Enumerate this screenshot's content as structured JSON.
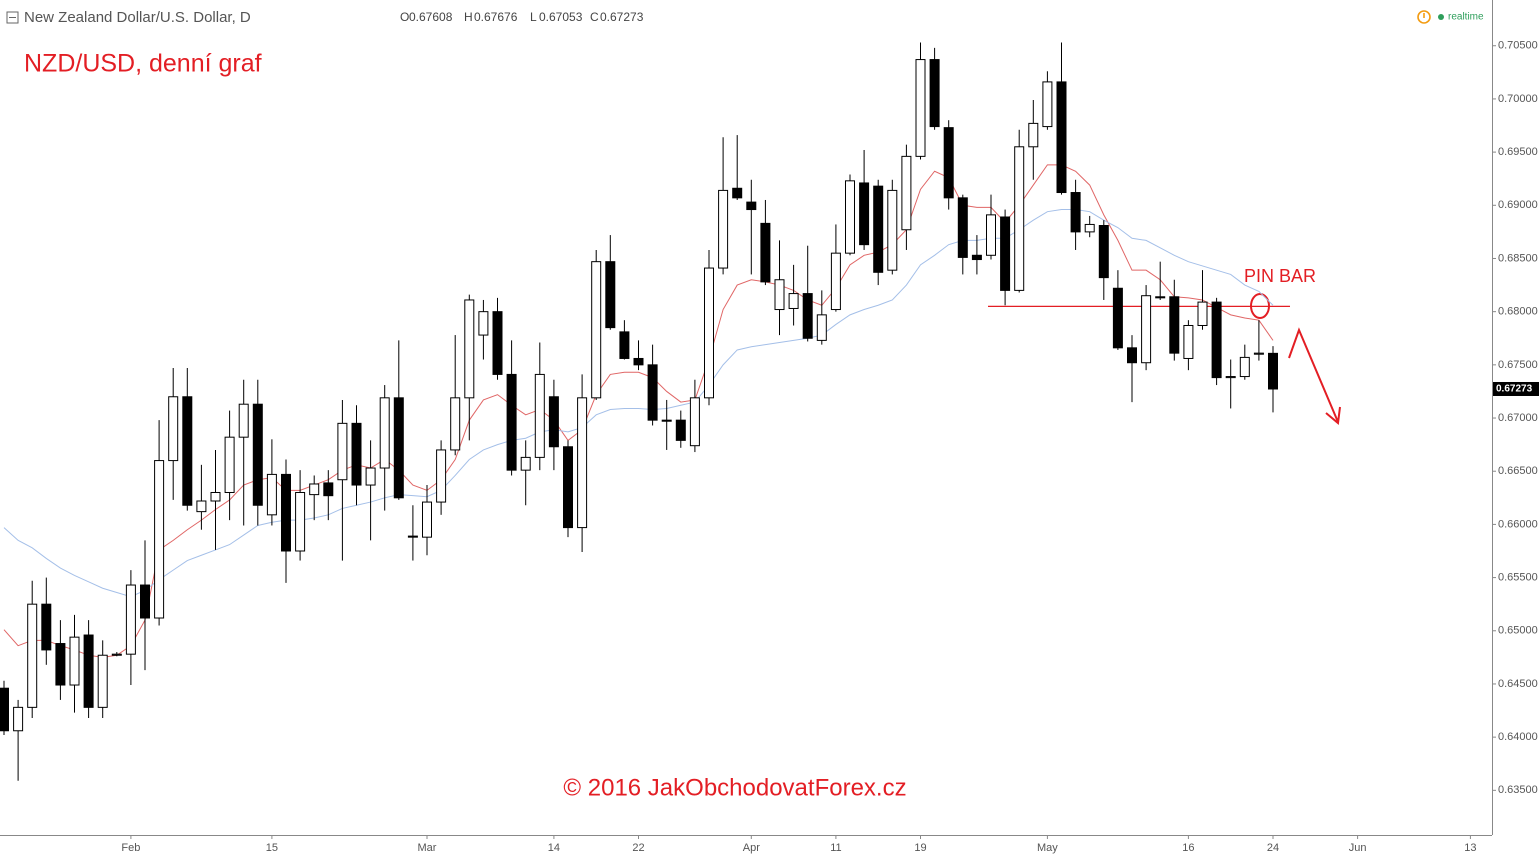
{
  "header": {
    "title": "New Zealand Dollar/U.S. Dollar, D",
    "labels": [
      "O",
      "H",
      "L",
      "C"
    ],
    "status": "realtime"
  },
  "chart_data": {
    "type": "candlestick",
    "title": "NZD/USD, denní graf",
    "footer": "© 2016  JakObchodovatForex.cz",
    "annotation": {
      "text": "PIN BAR",
      "level": 0.6805,
      "color": "#e31e24"
    },
    "up_color": "#ffffff",
    "down_color": "#000000",
    "categories": [
      null,
      null,
      null,
      null,
      null,
      null,
      null,
      null,
      null,
      "Feb",
      null,
      null,
      null,
      null,
      null,
      null,
      null,
      null,
      null,
      "15",
      null,
      null,
      null,
      null,
      null,
      null,
      null,
      null,
      null,
      null,
      "Mar",
      null,
      null,
      null,
      null,
      null,
      null,
      null,
      null,
      "14",
      null,
      null,
      null,
      null,
      null,
      "22",
      null,
      null,
      null,
      null,
      null,
      null,
      null,
      "Apr",
      null,
      null,
      null,
      null,
      null,
      "11",
      null,
      null,
      null,
      null,
      null,
      "19",
      null,
      null,
      null,
      null,
      null,
      null,
      null,
      null,
      "May",
      null,
      null,
      null,
      null,
      null,
      null,
      null,
      null,
      null,
      "16",
      null,
      null,
      null,
      null,
      null,
      "24",
      null,
      null,
      null,
      null,
      null,
      "Jun",
      null,
      null,
      null,
      null,
      null,
      null,
      null,
      "13",
      null
    ],
    "open": [
      0.6446,
      0.6406,
      0.6428,
      0.6525,
      0.6488,
      0.6449,
      0.6496,
      0.6428,
      0.6477,
      0.6478,
      0.6543,
      0.6512,
      0.666,
      0.672,
      0.6612,
      0.6622,
      0.663,
      0.6682,
      0.6713,
      0.6609,
      0.6647,
      0.6575,
      0.6628,
      0.6639,
      0.6642,
      0.6695,
      0.6637,
      0.6653,
      0.6719,
      0.6589,
      0.6588,
      0.6621,
      0.667,
      0.6719,
      0.6778,
      0.68,
      0.6741,
      0.6651,
      0.6663,
      0.672,
      0.6673,
      0.6597,
      0.6719,
      0.6847,
      0.6781,
      0.6756,
      0.675,
      0.6698,
      0.6698,
      0.6674,
      0.6719,
      0.6841,
      0.6916,
      0.6903,
      0.6883,
      0.6802,
      0.6803,
      0.6817,
      0.6773,
      0.6802,
      0.6855,
      0.6921,
      0.6918,
      0.6839,
      0.6877,
      0.6946,
      0.7037,
      0.6973,
      0.6907,
      0.6853,
      0.6853,
      0.6889,
      0.682,
      0.6955,
      0.6974,
      0.7016,
      0.6912,
      0.6875,
      0.6881,
      0.6822,
      0.6766,
      0.6752,
      0.6814,
      0.6814,
      0.6756,
      0.6787,
      0.6809,
      0.6738,
      0.6739,
      0.676,
      0.67608,
      null,
      null,
      null,
      null,
      null,
      null,
      null,
      null,
      null,
      null,
      null,
      null,
      null,
      null,
      null
    ],
    "high": [
      0.6453,
      0.6435,
      0.6547,
      0.655,
      0.651,
      0.6515,
      0.651,
      0.6491,
      0.648,
      0.6557,
      0.6585,
      0.6698,
      0.6747,
      0.6747,
      0.6656,
      0.667,
      0.6707,
      0.6736,
      0.6736,
      0.668,
      0.6661,
      0.6651,
      0.6646,
      0.6651,
      0.6717,
      0.6712,
      0.6679,
      0.6731,
      0.6773,
      0.6618,
      0.6637,
      0.6679,
      0.6778,
      0.6816,
      0.6811,
      0.6813,
      0.6773,
      0.6679,
      0.6771,
      0.6736,
      0.6679,
      0.6741,
      0.6858,
      0.6872,
      0.6792,
      0.6773,
      0.6769,
      0.6717,
      0.6707,
      0.6736,
      0.6858,
      0.6964,
      0.6966,
      0.6924,
      0.6905,
      0.6867,
      0.6844,
      0.6862,
      0.682,
      0.6882,
      0.6929,
      0.6952,
      0.6924,
      0.6924,
      0.6957,
      0.7053,
      0.7048,
      0.698,
      0.691,
      0.6872,
      0.691,
      0.6896,
      0.6971,
      0.6999,
      0.7026,
      0.7053,
      0.6924,
      0.689,
      0.6886,
      0.6839,
      0.6778,
      0.6825,
      0.6847,
      0.683,
      0.6792,
      0.6839,
      0.6813,
      0.6755,
      0.6769,
      0.6792,
      0.67676,
      null,
      null,
      null,
      null,
      null,
      null,
      null,
      null,
      null,
      null,
      null,
      null,
      null,
      null,
      null
    ],
    "low": [
      0.6402,
      0.6359,
      0.6418,
      0.6468,
      0.6435,
      0.6423,
      0.6418,
      0.6418,
      0.6476,
      0.6449,
      0.6463,
      0.6505,
      0.6623,
      0.6613,
      0.6595,
      0.6576,
      0.6604,
      0.6599,
      0.6599,
      0.6599,
      0.6545,
      0.6566,
      0.6604,
      0.6604,
      0.6566,
      0.6618,
      0.6585,
      0.6613,
      0.6623,
      0.6566,
      0.6571,
      0.6609,
      0.6665,
      0.6679,
      0.6755,
      0.6736,
      0.6646,
      0.6618,
      0.6651,
      0.6651,
      0.6588,
      0.6574,
      0.6717,
      0.6783,
      0.6755,
      0.6745,
      0.6693,
      0.667,
      0.6672,
      0.6668,
      0.6712,
      0.6835,
      0.6905,
      0.6835,
      0.6825,
      0.6778,
      0.6787,
      0.6772,
      0.6769,
      0.68,
      0.6853,
      0.6858,
      0.6825,
      0.6835,
      0.6858,
      0.6943,
      0.6971,
      0.6896,
      0.6835,
      0.6835,
      0.6849,
      0.6806,
      0.6818,
      0.6924,
      0.6971,
      0.691,
      0.6858,
      0.687,
      0.6811,
      0.6764,
      0.6715,
      0.6745,
      0.6811,
      0.6754,
      0.6745,
      0.6783,
      0.6731,
      0.6709,
      0.6736,
      0.6754,
      0.67053,
      null,
      null,
      null,
      null,
      null,
      null,
      null,
      null,
      null,
      null,
      null,
      null,
      null,
      null,
      null
    ],
    "close": [
      0.6406,
      0.6428,
      0.6525,
      0.6482,
      0.6449,
      0.6494,
      0.6428,
      0.6477,
      0.6478,
      0.6543,
      0.6512,
      0.666,
      0.672,
      0.6618,
      0.6622,
      0.663,
      0.6682,
      0.6713,
      0.6618,
      0.6647,
      0.6575,
      0.663,
      0.6638,
      0.6627,
      0.6695,
      0.6637,
      0.6653,
      0.6719,
      0.6625,
      0.6588,
      0.6621,
      0.667,
      0.6719,
      0.6811,
      0.68,
      0.6741,
      0.6651,
      0.6663,
      0.6741,
      0.6673,
      0.6597,
      0.6719,
      0.6847,
      0.6785,
      0.6756,
      0.675,
      0.6698,
      0.6697,
      0.6679,
      0.6719,
      0.6841,
      0.6914,
      0.6907,
      0.6896,
      0.6828,
      0.683,
      0.6817,
      0.6775,
      0.6797,
      0.6855,
      0.6923,
      0.6863,
      0.6837,
      0.6914,
      0.6946,
      0.7037,
      0.6974,
      0.6907,
      0.6851,
      0.6849,
      0.6891,
      0.682,
      0.6955,
      0.6977,
      0.7016,
      0.6912,
      0.6875,
      0.6882,
      0.6832,
      0.6766,
      0.6752,
      0.6815,
      0.6813,
      0.6761,
      0.6787,
      0.6809,
      0.6738,
      0.6739,
      0.6757,
      0.6761,
      0.67273,
      null,
      null,
      null,
      null,
      null,
      null,
      null,
      null,
      null,
      null,
      null,
      null,
      null,
      null,
      null
    ],
    "ma_fast": {
      "color": "#e06666",
      "values": [
        0.6501,
        0.6486,
        0.6491,
        0.6491,
        0.6486,
        0.6482,
        0.6477,
        0.6475,
        0.6477,
        0.6486,
        0.651,
        0.6576,
        0.6585,
        0.6595,
        0.6604,
        0.6614,
        0.6623,
        0.6637,
        0.6642,
        0.6644,
        0.6632,
        0.6632,
        0.6637,
        0.6642,
        0.6651,
        0.6656,
        0.6653,
        0.6661,
        0.6651,
        0.6637,
        0.6632,
        0.6642,
        0.6661,
        0.6698,
        0.6717,
        0.6722,
        0.6712,
        0.6703,
        0.6708,
        0.6698,
        0.6679,
        0.6689,
        0.6722,
        0.6741,
        0.6743,
        0.6743,
        0.6738,
        0.6725,
        0.6715,
        0.6717,
        0.6755,
        0.6802,
        0.6825,
        0.683,
        0.6828,
        0.6825,
        0.682,
        0.6811,
        0.6806,
        0.6822,
        0.6844,
        0.6853,
        0.6856,
        0.6863,
        0.6877,
        0.6915,
        0.6932,
        0.6926,
        0.69,
        0.6898,
        0.6898,
        0.6884,
        0.69,
        0.6919,
        0.6938,
        0.6938,
        0.6932,
        0.6919,
        0.6891,
        0.6867,
        0.6839,
        0.6839,
        0.683,
        0.6814,
        0.6813,
        0.6811,
        0.6804,
        0.6797,
        0.6794,
        0.6792,
        0.6773,
        null,
        null,
        null,
        null,
        null,
        null,
        null,
        null,
        null,
        null,
        null,
        null,
        null,
        null,
        null
      ]
    },
    "ma_slow": {
      "color": "#a4bfe8",
      "values": [
        0.6597,
        0.6585,
        0.6578,
        0.6568,
        0.6559,
        0.6552,
        0.6546,
        0.654,
        0.6536,
        0.6532,
        0.6538,
        0.6548,
        0.6557,
        0.6566,
        0.6571,
        0.6576,
        0.6581,
        0.659,
        0.6599,
        0.6602,
        0.6604,
        0.6604,
        0.6606,
        0.6609,
        0.6615,
        0.6618,
        0.6621,
        0.6625,
        0.6628,
        0.6627,
        0.6626,
        0.6632,
        0.6646,
        0.6661,
        0.667,
        0.6675,
        0.6679,
        0.6681,
        0.6687,
        0.6689,
        0.6687,
        0.6691,
        0.6703,
        0.6708,
        0.6709,
        0.6709,
        0.6708,
        0.6709,
        0.6712,
        0.6715,
        0.6731,
        0.675,
        0.6764,
        0.6767,
        0.6769,
        0.6771,
        0.6773,
        0.6775,
        0.6778,
        0.6788,
        0.6797,
        0.6802,
        0.6806,
        0.6811,
        0.6825,
        0.6844,
        0.6853,
        0.6863,
        0.6867,
        0.6867,
        0.6869,
        0.6869,
        0.6877,
        0.6886,
        0.6894,
        0.6896,
        0.6896,
        0.6894,
        0.6886,
        0.6879,
        0.6869,
        0.6867,
        0.686,
        0.6853,
        0.6847,
        0.6843,
        0.6839,
        0.6835,
        0.6825,
        0.6819,
        0.6806,
        null,
        null,
        null,
        null,
        null,
        null,
        null,
        null,
        null,
        null,
        null,
        null,
        null,
        null,
        null
      ]
    },
    "ylim": [
      0.6308,
      0.7093
    ],
    "yticks": [
      {
        "value": 0.635,
        "label": "0.63500"
      },
      {
        "value": 0.64,
        "label": "0.64000"
      },
      {
        "value": 0.645,
        "label": "0.64500"
      },
      {
        "value": 0.65,
        "label": "0.65000"
      },
      {
        "value": 0.655,
        "label": "0.65500"
      },
      {
        "value": 0.66,
        "label": "0.66000"
      },
      {
        "value": 0.665,
        "label": "0.66500"
      },
      {
        "value": 0.67,
        "label": "0.67000"
      },
      {
        "value": 0.675,
        "label": "0.67500"
      },
      {
        "value": 0.68,
        "label": "0.68000"
      },
      {
        "value": 0.685,
        "label": "0.68500"
      },
      {
        "value": 0.69,
        "label": "0.69000"
      },
      {
        "value": 0.695,
        "label": "0.69500"
      },
      {
        "value": 0.7,
        "label": "0.70000"
      },
      {
        "value": 0.705,
        "label": "0.70500"
      }
    ]
  }
}
